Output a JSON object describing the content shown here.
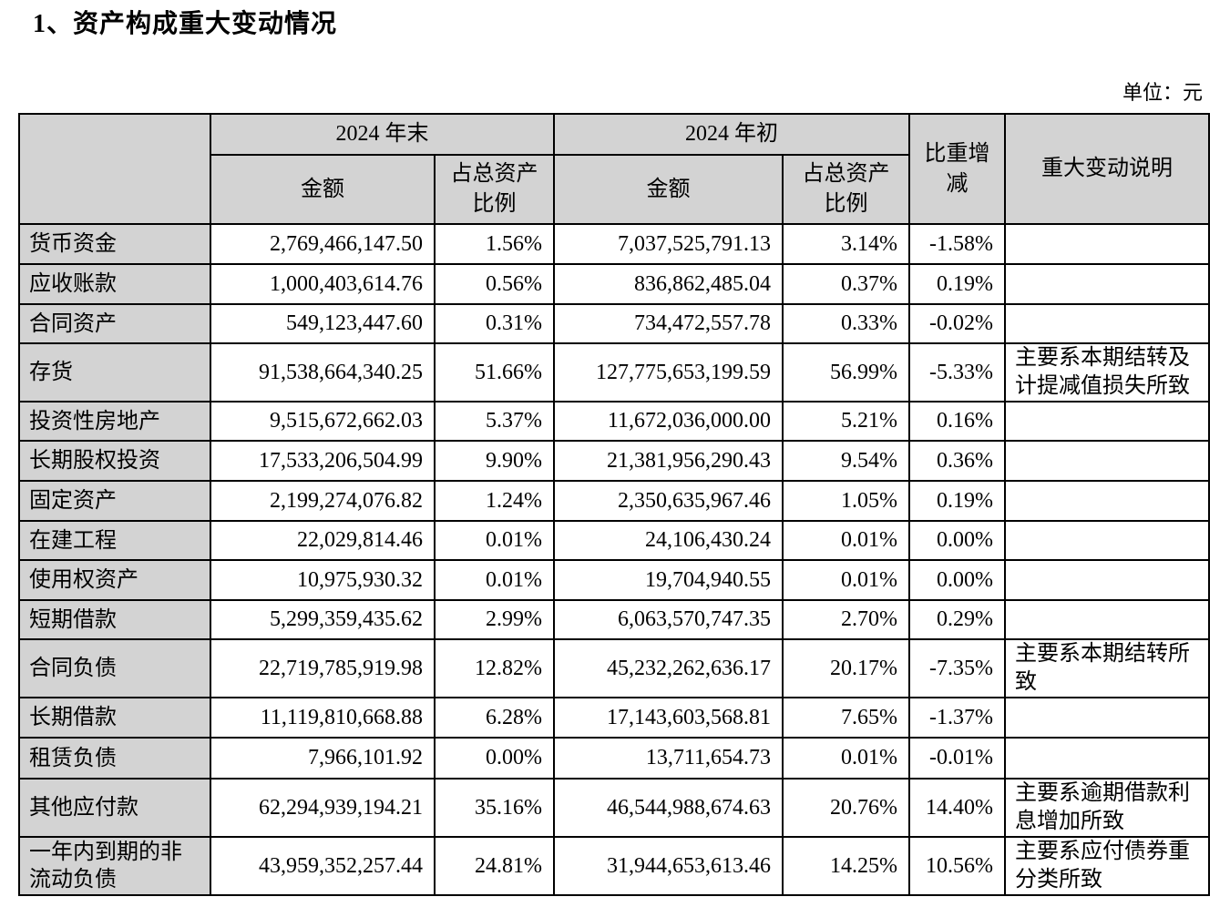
{
  "page": {
    "title": "1、资产构成重大变动情况",
    "unit_label": "单位：元"
  },
  "table": {
    "header": {
      "period_end": "2024 年末",
      "period_begin": "2024 年初",
      "amount": "金额",
      "pct_of_total": "占总资产比例",
      "change": "比重增减",
      "note": "重大变动说明"
    },
    "rows": [
      {
        "label": "货币资金",
        "end_amount": "2,769,466,147.50",
        "end_pct": "1.56%",
        "begin_amount": "7,037,525,791.13",
        "begin_pct": "3.14%",
        "change": "-1.58%",
        "note": ""
      },
      {
        "label": "应收账款",
        "end_amount": "1,000,403,614.76",
        "end_pct": "0.56%",
        "begin_amount": "836,862,485.04",
        "begin_pct": "0.37%",
        "change": "0.19%",
        "note": ""
      },
      {
        "label": "合同资产",
        "end_amount": "549,123,447.60",
        "end_pct": "0.31%",
        "begin_amount": "734,472,557.78",
        "begin_pct": "0.33%",
        "change": "-0.02%",
        "note": ""
      },
      {
        "label": "存货",
        "end_amount": "91,538,664,340.25",
        "end_pct": "51.66%",
        "begin_amount": "127,775,653,199.59",
        "begin_pct": "56.99%",
        "change": "-5.33%",
        "note": "主要系本期结转及计提减值损失所致"
      },
      {
        "label": "投资性房地产",
        "end_amount": "9,515,672,662.03",
        "end_pct": "5.37%",
        "begin_amount": "11,672,036,000.00",
        "begin_pct": "5.21%",
        "change": "0.16%",
        "note": ""
      },
      {
        "label": "长期股权投资",
        "end_amount": "17,533,206,504.99",
        "end_pct": "9.90%",
        "begin_amount": "21,381,956,290.43",
        "begin_pct": "9.54%",
        "change": "0.36%",
        "note": ""
      },
      {
        "label": "固定资产",
        "end_amount": "2,199,274,076.82",
        "end_pct": "1.24%",
        "begin_amount": "2,350,635,967.46",
        "begin_pct": "1.05%",
        "change": "0.19%",
        "note": ""
      },
      {
        "label": "在建工程",
        "end_amount": "22,029,814.46",
        "end_pct": "0.01%",
        "begin_amount": "24,106,430.24",
        "begin_pct": "0.01%",
        "change": "0.00%",
        "note": ""
      },
      {
        "label": "使用权资产",
        "end_amount": "10,975,930.32",
        "end_pct": "0.01%",
        "begin_amount": "19,704,940.55",
        "begin_pct": "0.01%",
        "change": "0.00%",
        "note": ""
      },
      {
        "label": "短期借款",
        "end_amount": "5,299,359,435.62",
        "end_pct": "2.99%",
        "begin_amount": "6,063,570,747.35",
        "begin_pct": "2.70%",
        "change": "0.29%",
        "note": ""
      },
      {
        "label": "合同负债",
        "end_amount": "22,719,785,919.98",
        "end_pct": "12.82%",
        "begin_amount": "45,232,262,636.17",
        "begin_pct": "20.17%",
        "change": "-7.35%",
        "note": "主要系本期结转所致"
      },
      {
        "label": "长期借款",
        "end_amount": "11,119,810,668.88",
        "end_pct": "6.28%",
        "begin_amount": "17,143,603,568.81",
        "begin_pct": "7.65%",
        "change": "-1.37%",
        "note": ""
      },
      {
        "label": "租赁负债",
        "end_amount": "7,966,101.92",
        "end_pct": "0.00%",
        "begin_amount": "13,711,654.73",
        "begin_pct": "0.01%",
        "change": "-0.01%",
        "note": ""
      },
      {
        "label": "其他应付款",
        "end_amount": "62,294,939,194.21",
        "end_pct": "35.16%",
        "begin_amount": "46,544,988,674.63",
        "begin_pct": "20.76%",
        "change": "14.40%",
        "note": "主要系逾期借款利息增加所致"
      },
      {
        "label": "一年内到期的非流动负债",
        "end_amount": "43,959,352,257.44",
        "end_pct": "24.81%",
        "begin_amount": "31,944,653,613.46",
        "begin_pct": "14.25%",
        "change": "10.56%",
        "note": "主要系应付债券重分类所致"
      }
    ]
  }
}
